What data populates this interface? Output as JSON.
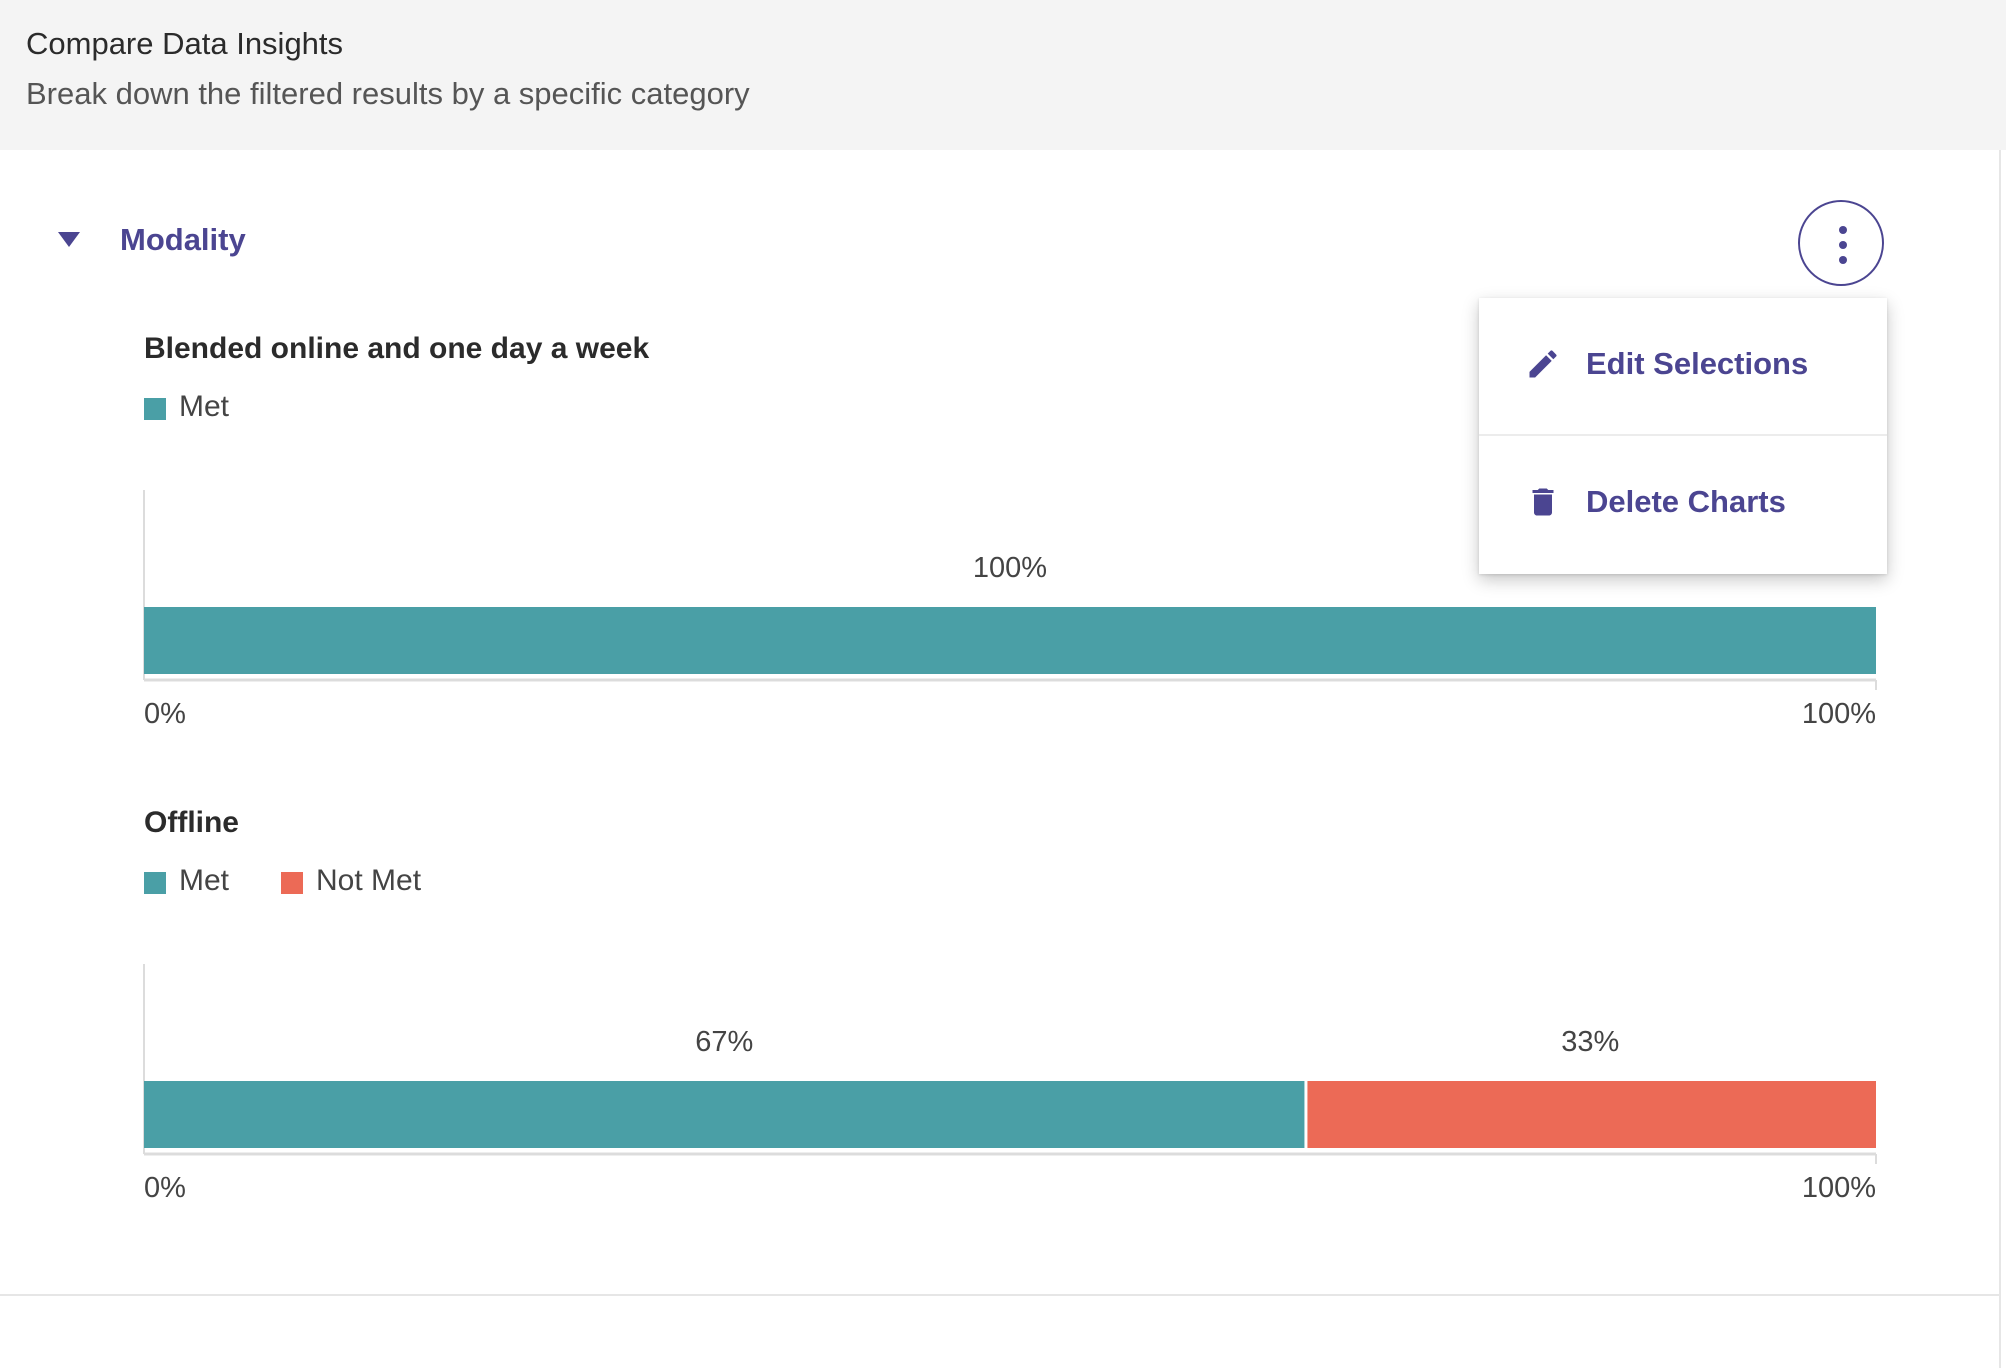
{
  "header": {
    "title": "Compare Data Insights",
    "subtitle": "Break down the filtered results by a specific category"
  },
  "section": {
    "title": "Modality",
    "menu_button_icon": "more-vert-icon"
  },
  "menu": {
    "items": [
      {
        "label": "Edit Selections",
        "icon": "pencil-icon"
      },
      {
        "label": "Delete Charts",
        "icon": "trash-icon"
      }
    ]
  },
  "colors": {
    "accent": "#4b4591",
    "met": "#4a9fa6",
    "not_met": "#ec6a56"
  },
  "chart_data": [
    {
      "type": "bar",
      "orientation": "horizontal-stacked",
      "title": "Blended online and one day a week",
      "series": [
        {
          "name": "Met",
          "values": [
            100
          ],
          "label": "100%"
        }
      ],
      "xlim": [
        0,
        100
      ],
      "tick_labels": [
        "0%",
        "100%"
      ],
      "legend": "top-left"
    },
    {
      "type": "bar",
      "orientation": "horizontal-stacked",
      "title": "Offline",
      "series": [
        {
          "name": "Met",
          "values": [
            67
          ],
          "label": "67%"
        },
        {
          "name": "Not Met",
          "values": [
            33
          ],
          "label": "33%"
        }
      ],
      "xlim": [
        0,
        100
      ],
      "tick_labels": [
        "0%",
        "100%"
      ],
      "legend": "top-left"
    }
  ]
}
